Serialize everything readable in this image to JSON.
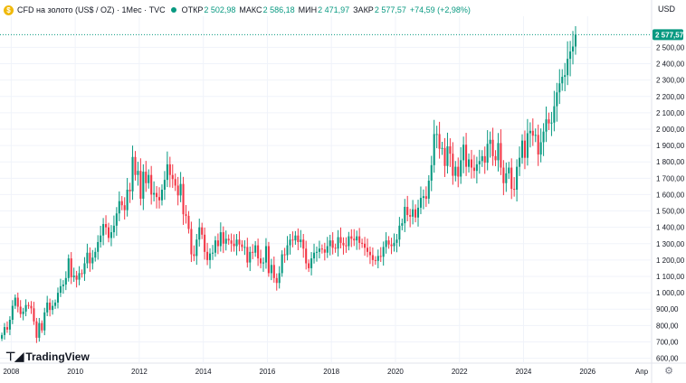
{
  "header": {
    "symbol_icon": "gold-coin-icon",
    "symbol": "CFD на золото (US$ / OZ) · 1Мес · TVC",
    "ohlc": [
      {
        "k": "ОТКР",
        "v": "2 502,98"
      },
      {
        "k": "МАКС",
        "v": "2 586,18"
      },
      {
        "k": "МИН",
        "v": "2 471,97"
      },
      {
        "k": "ЗАКР",
        "v": "2 577,57"
      },
      {
        "k": "",
        "v": "+74,59 (+2,98%)"
      }
    ]
  },
  "currency": "USD",
  "last_price_label": "2 577,57",
  "logo_text": "TradingView",
  "colors": {
    "up": "#089981",
    "down": "#f23645",
    "price_tag": "#089981",
    "grid": "#f0f3fa"
  },
  "chart_data": {
    "type": "candlestick",
    "title": "CFD на золото (US$ / OZ)",
    "interval": "1 month",
    "ylim": [
      570,
      2690
    ],
    "y_ticks": [
      600,
      700,
      800,
      900,
      1000,
      1100,
      1200,
      1300,
      1400,
      1500,
      1600,
      1700,
      1800,
      1900,
      2000,
      2100,
      2200,
      2300,
      2400,
      2500
    ],
    "y_tick_labels": [
      "600,00",
      "700,00",
      "800,00",
      "900,00",
      "1 000,00",
      "1 100,00",
      "1 200,00",
      "1 300,00",
      "1 400,00",
      "1 500,00",
      "1 600,00",
      "1 700,00",
      "1 800,00",
      "1 900,00",
      "2 000,00",
      "2 100,00",
      "2 200,00",
      "2 300,00",
      "2 400,00",
      "2 500,00"
    ],
    "x_range": [
      2007.65,
      2028.0
    ],
    "x_ticks": [
      2008,
      2010,
      2012,
      2014,
      2016,
      2018,
      2020,
      2022,
      2024,
      2026
    ],
    "x_tick_labels": [
      "2008",
      "2010",
      "2012",
      "2014",
      "2016",
      "2018",
      "2020",
      "2022",
      "2024",
      "2026"
    ],
    "x_extra_label": "Апр",
    "last_value": 2577.57,
    "start": [
      2007,
      9
    ],
    "closes": [
      742,
      790,
      775,
      835,
      920,
      970,
      915,
      870,
      885,
      925,
      920,
      905,
      825,
      725,
      815,
      770,
      880,
      940,
      895,
      920,
      940,
      1000,
      1040,
      1050,
      1090,
      1210,
      1095,
      1105,
      1080,
      1120,
      1115,
      1180,
      1245,
      1180,
      1215,
      1250,
      1310,
      1350,
      1420,
      1400,
      1335,
      1370,
      1410,
      1485,
      1560,
      1535,
      1505,
      1630,
      1620,
      1830,
      1720,
      1745,
      1575,
      1740,
      1670,
      1720,
      1600,
      1610,
      1585,
      1565,
      1630,
      1690,
      1785,
      1720,
      1695,
      1655,
      1595,
      1665,
      1480,
      1470,
      1390,
      1235,
      1225,
      1325,
      1400,
      1355,
      1250,
      1200,
      1240,
      1245,
      1320,
      1285,
      1370,
      1300,
      1330,
      1320,
      1300,
      1285,
      1325,
      1295,
      1280,
      1280,
      1185,
      1250,
      1245,
      1290,
      1210,
      1180,
      1185,
      1285,
      1120,
      1170,
      1090,
      1060,
      1120,
      1235,
      1230,
      1290,
      1325,
      1320,
      1350,
      1310,
      1325,
      1270,
      1180,
      1150,
      1210,
      1245,
      1250,
      1270,
      1265,
      1245,
      1285,
      1320,
      1275,
      1270,
      1340,
      1305,
      1290,
      1285,
      1345,
      1330,
      1320,
      1345,
      1305,
      1300,
      1275,
      1250,
      1230,
      1200,
      1195,
      1225,
      1220,
      1280,
      1320,
      1295,
      1285,
      1305,
      1325,
      1410,
      1425,
      1525,
      1475,
      1465,
      1510,
      1460,
      1520,
      1580,
      1590,
      1575,
      1685,
      1780,
      1970,
      1970,
      1880,
      1885,
      1775,
      1895,
      1850,
      1715,
      1770,
      1710,
      1810,
      1905,
      1770,
      1815,
      1765,
      1745,
      1785,
      1805,
      1835,
      1795,
      1910,
      1935,
      1835,
      1810,
      1915,
      1765,
      1670,
      1730,
      1765,
      1635,
      1630,
      1770,
      1825,
      1930,
      1825,
      1975,
      1990,
      1960,
      1965,
      1845,
      1920,
      1985,
      2060,
      2035,
      2040,
      2140,
      2225,
      2280,
      2320,
      2330,
      2430,
      2475,
      2505,
      2578
    ],
    "volatility_note": "monthly high/low estimated from candle body ranges"
  }
}
